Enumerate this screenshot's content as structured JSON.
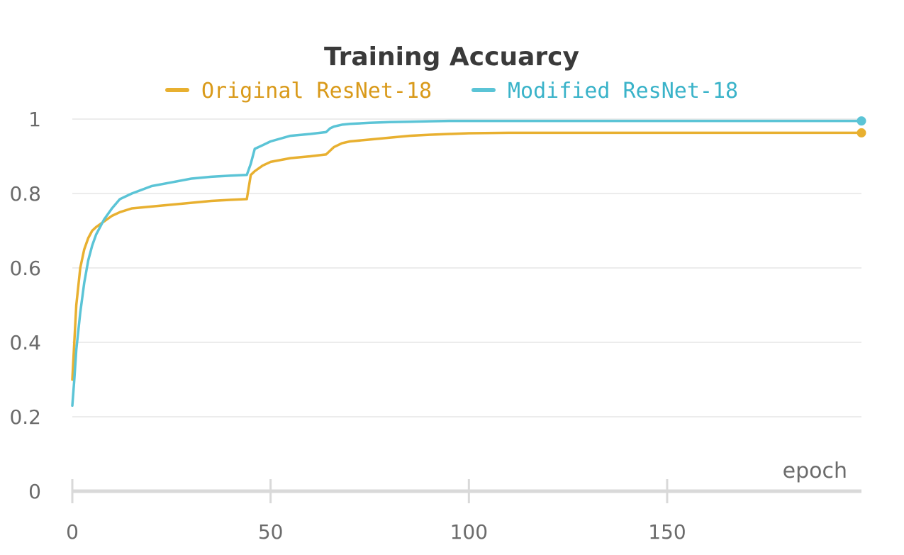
{
  "chart_data": {
    "type": "line",
    "title": "Training Accuarcy",
    "xlabel": "epoch",
    "ylabel": "",
    "xlim": [
      0,
      199
    ],
    "ylim": [
      0,
      1
    ],
    "x_ticks": [
      0,
      50,
      100,
      150
    ],
    "y_ticks": [
      0,
      0.2,
      0.4,
      0.6,
      0.8,
      1
    ],
    "x_tick_labels": [
      "0",
      "50",
      "100",
      "150"
    ],
    "y_tick_labels": [
      "0",
      "0.2",
      "0.4",
      "0.6",
      "0.8",
      "1"
    ],
    "grid": true,
    "legend_position": "top-center",
    "series": [
      {
        "name": "Original ResNet-18",
        "color": "#e8b030",
        "text_color": "#d99a1a",
        "points": [
          [
            0,
            0.3
          ],
          [
            0.5,
            0.4
          ],
          [
            1,
            0.5
          ],
          [
            2,
            0.6
          ],
          [
            3,
            0.65
          ],
          [
            4,
            0.68
          ],
          [
            5,
            0.7
          ],
          [
            6,
            0.71
          ],
          [
            8,
            0.725
          ],
          [
            10,
            0.74
          ],
          [
            12,
            0.75
          ],
          [
            15,
            0.76
          ],
          [
            20,
            0.765
          ],
          [
            25,
            0.77
          ],
          [
            30,
            0.775
          ],
          [
            35,
            0.78
          ],
          [
            40,
            0.783
          ],
          [
            44,
            0.785
          ],
          [
            45,
            0.85
          ],
          [
            46,
            0.86
          ],
          [
            48,
            0.875
          ],
          [
            50,
            0.885
          ],
          [
            55,
            0.895
          ],
          [
            60,
            0.9
          ],
          [
            64,
            0.905
          ],
          [
            65,
            0.915
          ],
          [
            66,
            0.925
          ],
          [
            68,
            0.935
          ],
          [
            70,
            0.94
          ],
          [
            75,
            0.945
          ],
          [
            80,
            0.95
          ],
          [
            85,
            0.955
          ],
          [
            90,
            0.958
          ],
          [
            95,
            0.96
          ],
          [
            100,
            0.962
          ],
          [
            110,
            0.963
          ],
          [
            120,
            0.963
          ],
          [
            130,
            0.963
          ],
          [
            140,
            0.963
          ],
          [
            150,
            0.963
          ],
          [
            160,
            0.963
          ],
          [
            170,
            0.963
          ],
          [
            180,
            0.963
          ],
          [
            190,
            0.963
          ],
          [
            199,
            0.963
          ]
        ]
      },
      {
        "name": "Modified ResNet-18",
        "color": "#5bc4d6",
        "text_color": "#3ab3c9",
        "points": [
          [
            0,
            0.23
          ],
          [
            0.5,
            0.3
          ],
          [
            1,
            0.38
          ],
          [
            2,
            0.48
          ],
          [
            3,
            0.56
          ],
          [
            4,
            0.62
          ],
          [
            5,
            0.66
          ],
          [
            6,
            0.69
          ],
          [
            8,
            0.73
          ],
          [
            10,
            0.76
          ],
          [
            12,
            0.785
          ],
          [
            15,
            0.8
          ],
          [
            20,
            0.82
          ],
          [
            25,
            0.83
          ],
          [
            30,
            0.84
          ],
          [
            35,
            0.845
          ],
          [
            40,
            0.848
          ],
          [
            44,
            0.85
          ],
          [
            45,
            0.88
          ],
          [
            46,
            0.92
          ],
          [
            48,
            0.93
          ],
          [
            50,
            0.94
          ],
          [
            55,
            0.955
          ],
          [
            60,
            0.96
          ],
          [
            64,
            0.965
          ],
          [
            65,
            0.975
          ],
          [
            66,
            0.98
          ],
          [
            68,
            0.985
          ],
          [
            70,
            0.987
          ],
          [
            75,
            0.99
          ],
          [
            80,
            0.992
          ],
          [
            85,
            0.993
          ],
          [
            90,
            0.994
          ],
          [
            95,
            0.995
          ],
          [
            100,
            0.995
          ],
          [
            110,
            0.995
          ],
          [
            120,
            0.995
          ],
          [
            130,
            0.995
          ],
          [
            140,
            0.995
          ],
          [
            150,
            0.995
          ],
          [
            160,
            0.995
          ],
          [
            170,
            0.995
          ],
          [
            180,
            0.995
          ],
          [
            190,
            0.995
          ],
          [
            199,
            0.995
          ]
        ]
      }
    ]
  }
}
